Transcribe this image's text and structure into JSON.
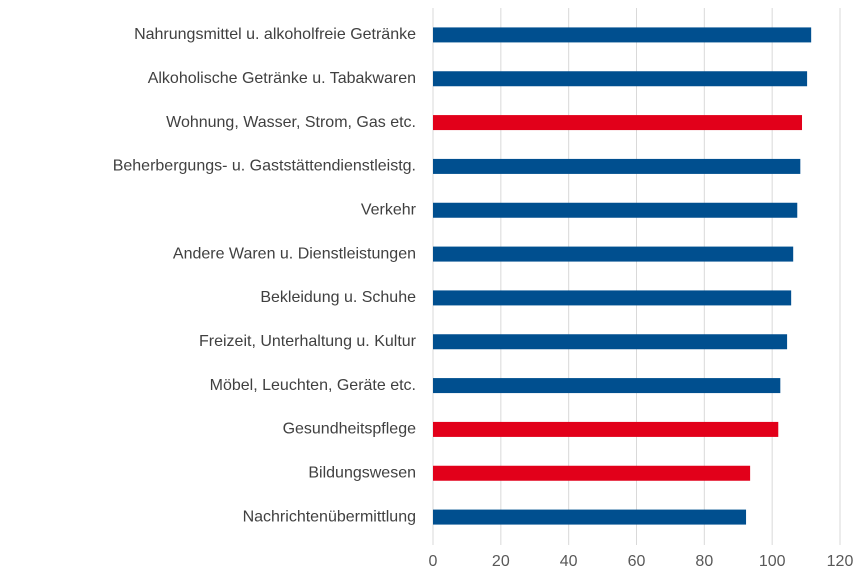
{
  "chart_data": {
    "type": "barh",
    "categories": [
      "Nahrungsmittel u. alkoholfreie Getränke",
      "Alkoholische Getränke u. Tabakwaren",
      "Wohnung, Wasser, Strom, Gas etc.",
      "Beherbergungs- u. Gaststättendienstleistg.",
      "Verkehr",
      "Andere Waren u. Dienstleistungen",
      "Bekleidung u. Schuhe",
      "Freizeit, Unterhaltung u. Kultur",
      "Möbel, Leuchten, Geräte etc.",
      "Gesundheitspflege",
      "Bildungswesen",
      "Nachrichtenübermittlung"
    ],
    "values": [
      111.5,
      110.3,
      108.8,
      108.3,
      107.4,
      106.2,
      105.6,
      104.4,
      102.4,
      101.8,
      93.5,
      92.3
    ],
    "colors": [
      "#004f8f",
      "#004f8f",
      "#e2001a",
      "#004f8f",
      "#004f8f",
      "#004f8f",
      "#004f8f",
      "#004f8f",
      "#004f8f",
      "#e2001a",
      "#e2001a",
      "#004f8f"
    ],
    "xlim": [
      0,
      120
    ],
    "xticks": [
      0,
      20,
      40,
      60,
      80,
      100,
      120
    ],
    "grid": true
  }
}
